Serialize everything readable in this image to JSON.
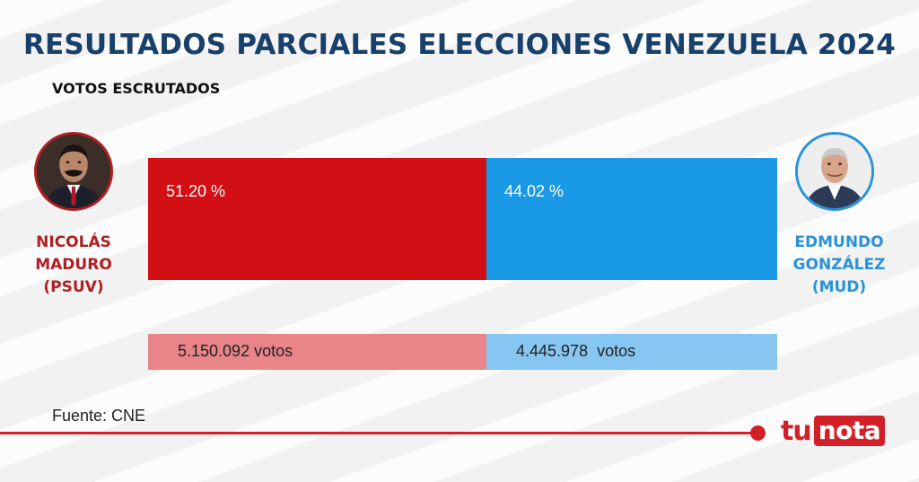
{
  "header": {
    "title": "RESULTADOS PARCIALES ELECCIONES VENEZUELA 2024",
    "subtitle": "VOTOS ESCRUTADOS"
  },
  "candidates": [
    {
      "name_line1": "NICOLÁS",
      "name_line2": "MADURO",
      "party": "(PSUV)",
      "color": "#b01f22"
    },
    {
      "name_line1": "EDMUNDO",
      "name_line2": "GONZÁLEZ",
      "party": "(MUD)",
      "color": "#2a93d8"
    }
  ],
  "chart_data": {
    "type": "bar",
    "orientation": "horizontal-stacked",
    "categories": [
      "NICOLÁS MADURO (PSUV)",
      "EDMUNDO GONZÁLEZ (MUD)"
    ],
    "percent_values": [
      51.2,
      44.02
    ],
    "percent_labels": [
      "51.20 %",
      "44.02 %"
    ],
    "vote_values": [
      5150092,
      4445978
    ],
    "vote_labels": [
      "5.150.092 votos",
      "4.445.978  votos"
    ],
    "colors": [
      "#d20f15",
      "#1999e6"
    ],
    "vote_colors": [
      "#e98489",
      "#86c6f1"
    ]
  },
  "footer": {
    "source": "Fuente: CNE",
    "logo_part1": "tu",
    "logo_part2": "nota"
  }
}
